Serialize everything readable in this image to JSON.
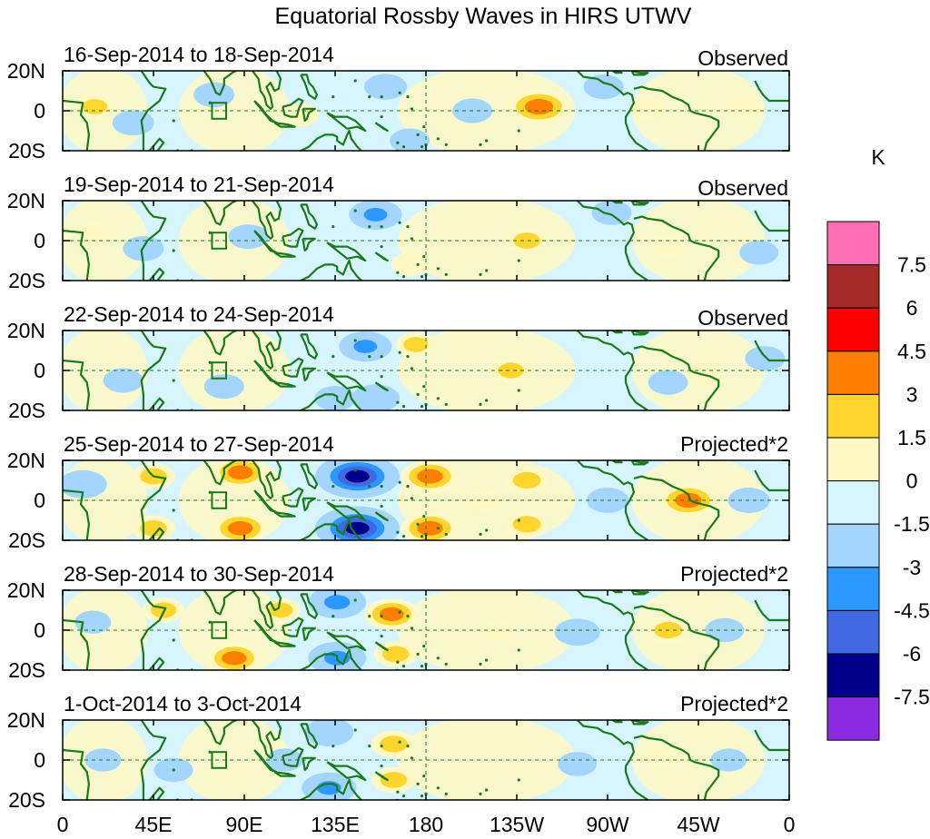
{
  "chart_data": {
    "type": "heatmap",
    "title": "Equatorial Rossby Waves in HIRS UTWV",
    "colorbar": {
      "unit": "K",
      "tick_labels": [
        "7.5",
        "6",
        "4.5",
        "3",
        "1.5",
        "0",
        "-1.5",
        "-3",
        "-4.5",
        "-6",
        "-7.5"
      ],
      "colors": [
        "#ff6eb4",
        "#a52a2a",
        "#ff0000",
        "#ff7f00",
        "#ffd52e",
        "#fff8c4",
        "#d6f5ff",
        "#a3d5ff",
        "#2b98ff",
        "#4169e1",
        "#00008b",
        "#8a2be2"
      ]
    },
    "x_axis": {
      "range_deg_east": [
        0,
        360
      ],
      "ticks": [
        {
          "deg": 0,
          "label": "0"
        },
        {
          "deg": 45,
          "label": "45E"
        },
        {
          "deg": 90,
          "label": "90E"
        },
        {
          "deg": 135,
          "label": "135E"
        },
        {
          "deg": 180,
          "label": "180"
        },
        {
          "deg": 225,
          "label": "135W"
        },
        {
          "deg": 270,
          "label": "90W"
        },
        {
          "deg": 315,
          "label": "45W"
        },
        {
          "deg": 360,
          "label": "0"
        }
      ]
    },
    "y_axis": {
      "range_lat": [
        -20,
        20
      ],
      "ticks": [
        {
          "lat": 20,
          "label": "20N"
        },
        {
          "lat": 0,
          "label": "0"
        },
        {
          "lat": -20,
          "label": "20S"
        }
      ]
    },
    "panels": [
      {
        "period": "16-Sep-2014 to 18-Sep-2014",
        "kind": "Observed",
        "anomalies": [
          {
            "lon": 16,
            "lat": 2,
            "value": 1.6
          },
          {
            "lon": 35,
            "lat": -6,
            "value": -1.8
          },
          {
            "lon": 75,
            "lat": 8,
            "value": -1.7
          },
          {
            "lon": 118,
            "lat": -2,
            "value": 1.2
          },
          {
            "lon": 160,
            "lat": 12,
            "value": -1.9
          },
          {
            "lon": 172,
            "lat": -15,
            "value": -1.6
          },
          {
            "lon": 203,
            "lat": 0,
            "value": -1.6
          },
          {
            "lon": 236,
            "lat": 2,
            "value": 4.2
          },
          {
            "lon": 268,
            "lat": 12,
            "value": -1.6
          },
          {
            "lon": 290,
            "lat": 1,
            "value": 1.3
          },
          {
            "lon": 338,
            "lat": 2,
            "value": 1.4
          }
        ]
      },
      {
        "period": "19-Sep-2014 to 21-Sep-2014",
        "kind": "Observed",
        "anomalies": [
          {
            "lon": 16,
            "lat": 4,
            "value": 0.9
          },
          {
            "lon": 40,
            "lat": -4,
            "value": -1.7
          },
          {
            "lon": 92,
            "lat": 2,
            "value": -1.6
          },
          {
            "lon": 155,
            "lat": 13,
            "value": -3.0
          },
          {
            "lon": 172,
            "lat": -12,
            "value": 1.3
          },
          {
            "lon": 230,
            "lat": 0,
            "value": 2.0
          },
          {
            "lon": 272,
            "lat": 14,
            "value": -1.6
          },
          {
            "lon": 300,
            "lat": -3,
            "value": 1.2
          },
          {
            "lon": 345,
            "lat": -6,
            "value": -1.5
          }
        ]
      },
      {
        "period": "22-Sep-2014 to 24-Sep-2014",
        "kind": "Observed",
        "anomalies": [
          {
            "lon": 30,
            "lat": -5,
            "value": -1.6
          },
          {
            "lon": 80,
            "lat": -8,
            "value": -1.6
          },
          {
            "lon": 135,
            "lat": -14,
            "value": -1.7
          },
          {
            "lon": 150,
            "lat": 12,
            "value": -3.0
          },
          {
            "lon": 155,
            "lat": -14,
            "value": -2.5
          },
          {
            "lon": 175,
            "lat": 13,
            "value": 1.6
          },
          {
            "lon": 222,
            "lat": 0,
            "value": 1.8
          },
          {
            "lon": 300,
            "lat": -6,
            "value": -1.6
          },
          {
            "lon": 318,
            "lat": -2,
            "value": 1.4
          },
          {
            "lon": 348,
            "lat": 6,
            "value": -1.6
          }
        ]
      },
      {
        "period": "25-Sep-2014 to 27-Sep-2014",
        "kind": "Projected*2",
        "anomalies": [
          {
            "lon": 10,
            "lat": 8,
            "value": -2.5
          },
          {
            "lon": 45,
            "lat": 12,
            "value": 2.0
          },
          {
            "lon": 45,
            "lat": -14,
            "value": 2.0
          },
          {
            "lon": 88,
            "lat": 14,
            "value": 3.4
          },
          {
            "lon": 88,
            "lat": -14,
            "value": 3.4
          },
          {
            "lon": 146,
            "lat": 12,
            "value": -6.5
          },
          {
            "lon": 146,
            "lat": -14,
            "value": -6.5
          },
          {
            "lon": 182,
            "lat": 12,
            "value": 3.6
          },
          {
            "lon": 182,
            "lat": -14,
            "value": 3.6
          },
          {
            "lon": 208,
            "lat": 0,
            "value": 1.4
          },
          {
            "lon": 230,
            "lat": 10,
            "value": 2.2
          },
          {
            "lon": 230,
            "lat": -12,
            "value": 2.2
          },
          {
            "lon": 270,
            "lat": 0,
            "value": -1.8
          },
          {
            "lon": 310,
            "lat": 0,
            "value": 3.8
          },
          {
            "lon": 340,
            "lat": 0,
            "value": -1.8
          }
        ]
      },
      {
        "period": "28-Sep-2014 to 30-Sep-2014",
        "kind": "Projected*2",
        "anomalies": [
          {
            "lon": 15,
            "lat": 4,
            "value": -1.2
          },
          {
            "lon": 50,
            "lat": 10,
            "value": 1.8
          },
          {
            "lon": 85,
            "lat": -14,
            "value": 3.3
          },
          {
            "lon": 108,
            "lat": 10,
            "value": 1.6
          },
          {
            "lon": 136,
            "lat": 14,
            "value": -3.6
          },
          {
            "lon": 136,
            "lat": -14,
            "value": -3.6
          },
          {
            "lon": 163,
            "lat": 8,
            "value": 3.2
          },
          {
            "lon": 165,
            "lat": -12,
            "value": 2.0
          },
          {
            "lon": 215,
            "lat": 0,
            "value": 0.8
          },
          {
            "lon": 255,
            "lat": -1,
            "value": -2.2
          },
          {
            "lon": 300,
            "lat": 0,
            "value": 2.2
          },
          {
            "lon": 328,
            "lat": 0,
            "value": -1.5
          }
        ]
      },
      {
        "period": "1-Oct-2014 to 3-Oct-2014",
        "kind": "Projected*2",
        "anomalies": [
          {
            "lon": 20,
            "lat": 0,
            "value": -1.2
          },
          {
            "lon": 55,
            "lat": -5,
            "value": -1.5
          },
          {
            "lon": 110,
            "lat": 0,
            "value": -1.2
          },
          {
            "lon": 132,
            "lat": 14,
            "value": -2.6
          },
          {
            "lon": 132,
            "lat": -14,
            "value": -3.2
          },
          {
            "lon": 164,
            "lat": 8,
            "value": 2.2
          },
          {
            "lon": 164,
            "lat": -10,
            "value": 2.0
          },
          {
            "lon": 255,
            "lat": -2,
            "value": -1.5
          },
          {
            "lon": 298,
            "lat": 3,
            "value": 1.3
          },
          {
            "lon": 330,
            "lat": 0,
            "value": -1.2
          }
        ]
      }
    ]
  }
}
